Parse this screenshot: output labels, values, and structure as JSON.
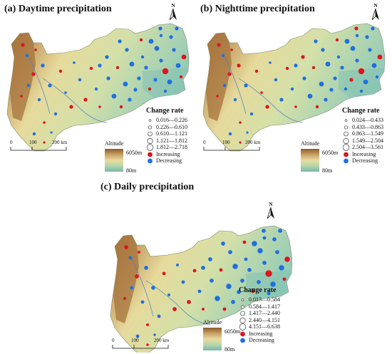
{
  "panels": [
    {
      "id": "a",
      "title": "(a) Daytime precipitation",
      "north": "N",
      "legend": {
        "title": "Change rate",
        "classes": [
          "0.016—0.226",
          "0.226—0.610",
          "0.610—1.121",
          "1.121—1.812",
          "1.812—2.718"
        ],
        "increasing": "Increasing",
        "decreasing": "Decreasing"
      },
      "altitude": {
        "title": "Altitude",
        "high": "6050m",
        "low": "80m"
      },
      "scale_labels": [
        "0",
        "100",
        "200 km"
      ]
    },
    {
      "id": "b",
      "title": "(b) Nighttime precipitation",
      "north": "N",
      "legend": {
        "title": "Change rate",
        "classes": [
          "0.024—0.433",
          "0.433—0.863",
          "0.863—1.549",
          "1.549—2.504",
          "2.504—3.561"
        ],
        "increasing": "Increasing",
        "decreasing": "Decreasing"
      },
      "altitude": {
        "title": "Altitude",
        "high": "6050m",
        "low": "80m"
      },
      "scale_labels": [
        "0",
        "100",
        "200 km"
      ]
    },
    {
      "id": "c",
      "title": "(c) Daily precipitation",
      "north": "N",
      "legend": {
        "title": "Change rate",
        "classes": [
          "0.013—0.584",
          "0.584—1.417",
          "1.417—2.440",
          "2.440—4.151",
          "4.151—6.638"
        ],
        "increasing": "Increasing",
        "decreasing": "Decreasing"
      },
      "altitude": {
        "title": "Altitude",
        "high": "6050m",
        "low": "80m"
      },
      "scale_labels": [
        "0",
        "100",
        "200 km"
      ]
    }
  ],
  "colors": {
    "increasing": "#e0141e",
    "decreasing": "#1f6fe0",
    "river": "#4a7fc0",
    "high_terrain": "#9c6a35",
    "low_terrain": "#7fbfb2"
  }
}
